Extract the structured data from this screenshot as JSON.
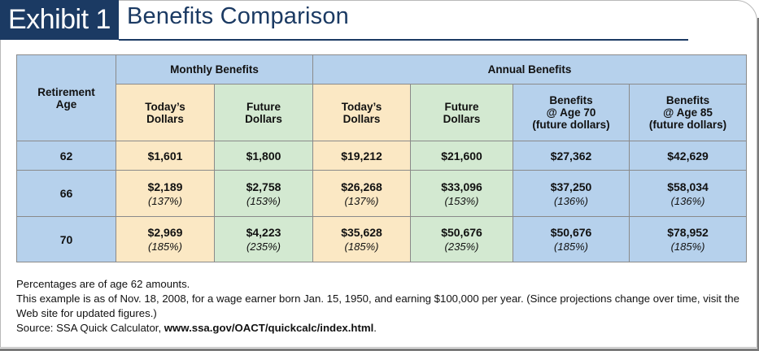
{
  "header": {
    "exhibit": "Exhibit 1",
    "title": "Benefits Comparison"
  },
  "table": {
    "corner_header": "Retirement\nAge",
    "group_headers": {
      "monthly": "Monthly Benefits",
      "annual": "Annual Benefits"
    },
    "sub_headers": [
      "Today’s\nDollars",
      "Future\nDollars",
      "Today’s\nDollars",
      "Future\nDollars",
      "Benefits\n@ Age 70\n(future dollars)",
      "Benefits\n@ Age 85\n(future dollars)"
    ],
    "rows": [
      {
        "age": "62",
        "cells": [
          {
            "value": "$1,601",
            "pct": ""
          },
          {
            "value": "$1,800",
            "pct": ""
          },
          {
            "value": "$19,212",
            "pct": ""
          },
          {
            "value": "$21,600",
            "pct": ""
          },
          {
            "value": "$27,362",
            "pct": ""
          },
          {
            "value": "$42,629",
            "pct": ""
          }
        ]
      },
      {
        "age": "66",
        "cells": [
          {
            "value": "$2,189",
            "pct": "(137%)"
          },
          {
            "value": "$2,758",
            "pct": "(153%)"
          },
          {
            "value": "$26,268",
            "pct": "(137%)"
          },
          {
            "value": "$33,096",
            "pct": "(153%)"
          },
          {
            "value": "$37,250",
            "pct": "(136%)"
          },
          {
            "value": "$58,034",
            "pct": "(136%)"
          }
        ]
      },
      {
        "age": "70",
        "cells": [
          {
            "value": "$2,969",
            "pct": "(185%)"
          },
          {
            "value": "$4,223",
            "pct": "(235%)"
          },
          {
            "value": "$35,628",
            "pct": "(185%)"
          },
          {
            "value": "$50,676",
            "pct": "(235%)"
          },
          {
            "value": "$50,676",
            "pct": "(185%)"
          },
          {
            "value": "$78,952",
            "pct": "(185%)"
          }
        ]
      }
    ]
  },
  "notes": {
    "line1": "Percentages are of age 62 amounts.",
    "line2": "This example is as of Nov. 18, 2008, for a wage earner born Jan. 15, 1950, and earning $100,000 per year. (Since projections change over time, visit the Web site for updated figures.)",
    "source_prefix": "Source: SSA Quick Calculator, ",
    "source_url": "www.ssa.gov/OACT/quickcalc/index.html",
    "source_suffix": "."
  },
  "colors": {
    "navy": "#1b3a63",
    "blue": "#b6d1ec",
    "yellow": "#fbe8c4",
    "green": "#d3e9d1"
  }
}
